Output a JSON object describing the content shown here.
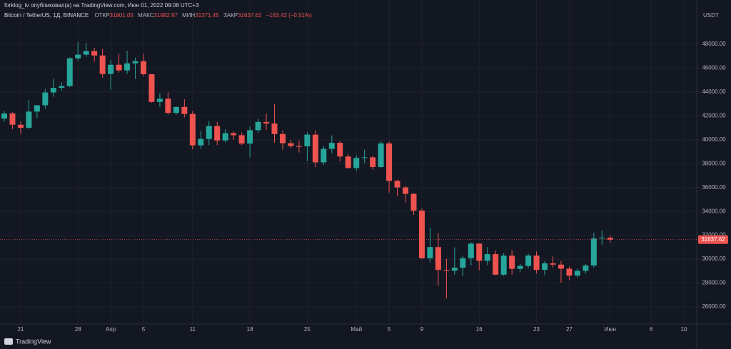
{
  "header": "forklog_tv опубликовал(а) на TradingView.com, Июн 01, 2022 09:08 UTC+3",
  "logo": "TradingView",
  "chart_data": {
    "type": "candlestick",
    "title": "Bitcoin / TetherUS, 1Д, BINANCE",
    "open_label": "ОТКР",
    "high_label": "МАКС",
    "low_label": "МИН",
    "close_label": "ЗАКР",
    "change_label": "−163.42 (−0.51%)",
    "currency": "USDT",
    "up_color": "#26a69a",
    "down_color": "#ef5350",
    "grid": true,
    "last_price_line": true,
    "categories": [
      null,
      null,
      "21",
      null,
      null,
      null,
      null,
      null,
      null,
      "28",
      null,
      null,
      null,
      "Апр",
      null,
      null,
      null,
      "5",
      null,
      null,
      null,
      null,
      null,
      "11",
      null,
      null,
      null,
      null,
      null,
      null,
      "18",
      null,
      null,
      null,
      null,
      null,
      null,
      "25",
      null,
      null,
      null,
      null,
      null,
      "Май",
      null,
      null,
      null,
      "5",
      null,
      null,
      null,
      "9",
      null,
      null,
      null,
      null,
      null,
      null,
      "16",
      null,
      null,
      null,
      null,
      null,
      null,
      "23",
      null,
      null,
      null,
      "27",
      null,
      null,
      null,
      null,
      "Июн",
      null,
      null,
      null,
      null,
      "6",
      null,
      null,
      null,
      "10",
      null
    ],
    "open": [
      41770,
      42200,
      41260,
      41000,
      42360,
      42890,
      43960,
      44350,
      44500,
      46820,
      47130,
      47430,
      47060,
      45510,
      46280,
      45810,
      46400,
      46580,
      45490,
      43170,
      43440,
      42250,
      42750,
      42160,
      39530,
      40070,
      41150,
      39940,
      40550,
      40380,
      39680,
      40800,
      41490,
      41360,
      40480,
      39710,
      39470,
      39450,
      40430,
      38110,
      39240,
      39740,
      38600,
      37630,
      38470,
      38530,
      37720,
      39690,
      36550,
      36010,
      35470,
      34060,
      30080,
      31010,
      29100,
      29030,
      29280,
      30080,
      31300,
      29860,
      30420,
      28700,
      30290,
      29190,
      29430,
      30300,
      29100,
      29650,
      29540,
      29200,
      28620,
      29020,
      29470,
      31730,
      31801.05,
      null,
      null,
      null,
      null,
      null,
      null,
      null,
      null,
      null,
      null
    ],
    "high": [
      42400,
      42300,
      41540,
      43350,
      42900,
      44250,
      45100,
      44800,
      46900,
      48190,
      48100,
      47700,
      47600,
      46700,
      47200,
      47450,
      46880,
      47200,
      45500,
      43900,
      43970,
      42800,
      43400,
      42400,
      40700,
      41560,
      41500,
      40870,
      40700,
      40600,
      41100,
      41750,
      42200,
      42980,
      40790,
      39980,
      39940,
      40620,
      40800,
      39470,
      40370,
      39920,
      38800,
      38680,
      39170,
      38650,
      39900,
      39850,
      36650,
      36150,
      35510,
      34240,
      32650,
      32160,
      30030,
      30990,
      30300,
      31410,
      31330,
      31000,
      30700,
      30500,
      30750,
      29600,
      30460,
      30650,
      29830,
      30220,
      29850,
      29370,
      29200,
      29570,
      32220,
      32400,
      31982.97,
      null,
      null,
      null,
      null,
      null,
      null,
      null,
      null,
      null,
      null
    ],
    "low": [
      41500,
      40900,
      40500,
      40900,
      41800,
      42600,
      43600,
      44100,
      44400,
      46660,
      46950,
      46550,
      45200,
      44200,
      45620,
      45500,
      45100,
      45350,
      43100,
      42750,
      42100,
      42120,
      41870,
      39200,
      39250,
      39550,
      39550,
      39770,
      40000,
      39550,
      38540,
      40570,
      40820,
      39750,
      39170,
      39280,
      38930,
      38200,
      37700,
      37870,
      38880,
      38180,
      37580,
      37390,
      38050,
      37510,
      37660,
      35570,
      35260,
      34750,
      33710,
      30030,
      29730,
      27780,
      26700,
      28700,
      28560,
      29460,
      29080,
      29500,
      28650,
      28600,
      28700,
      28940,
      29240,
      28800,
      28660,
      29300,
      28020,
      28250,
      28450,
      28800,
      29300,
      31200,
      31371.45,
      null,
      null,
      null,
      null,
      null,
      null,
      null,
      null,
      null,
      null
    ],
    "close": [
      42200,
      41260,
      41000,
      42360,
      42890,
      43960,
      44350,
      44500,
      46820,
      47130,
      47430,
      47060,
      45510,
      46280,
      45810,
      46400,
      46580,
      45490,
      43170,
      43440,
      42250,
      42750,
      42160,
      39530,
      40070,
      41150,
      39940,
      40550,
      40380,
      39680,
      40800,
      41490,
      41360,
      40480,
      39710,
      39470,
      39450,
      40430,
      38110,
      39240,
      39740,
      38600,
      37630,
      38470,
      38530,
      37720,
      39690,
      36550,
      36010,
      35470,
      34060,
      30080,
      31010,
      29100,
      29030,
      29280,
      30080,
      31300,
      29860,
      30420,
      28700,
      30290,
      29190,
      29430,
      30300,
      29100,
      29650,
      29540,
      29200,
      28620,
      29020,
      29470,
      31730,
      31801.05,
      31637.62,
      null,
      null,
      null,
      null,
      null,
      null,
      null,
      null,
      null,
      null
    ],
    "ylim": [
      24625,
      49913
    ],
    "yticks": [
      {
        "value": 26000,
        "label": "26000.00"
      },
      {
        "value": 28000,
        "label": "28000.00"
      },
      {
        "value": 30000,
        "label": "30000.00"
      },
      {
        "value": 32000,
        "label": "32000.00"
      },
      {
        "value": 34000,
        "label": "34000.00"
      },
      {
        "value": 36000,
        "label": "36000.00"
      },
      {
        "value": 38000,
        "label": "38000.00"
      },
      {
        "value": 40000,
        "label": "40000.00"
      },
      {
        "value": 42000,
        "label": "42000.00"
      },
      {
        "value": 44000,
        "label": "44000.00"
      },
      {
        "value": 46000,
        "label": "46000.00"
      },
      {
        "value": 48000,
        "label": "48000.00"
      }
    ]
  }
}
